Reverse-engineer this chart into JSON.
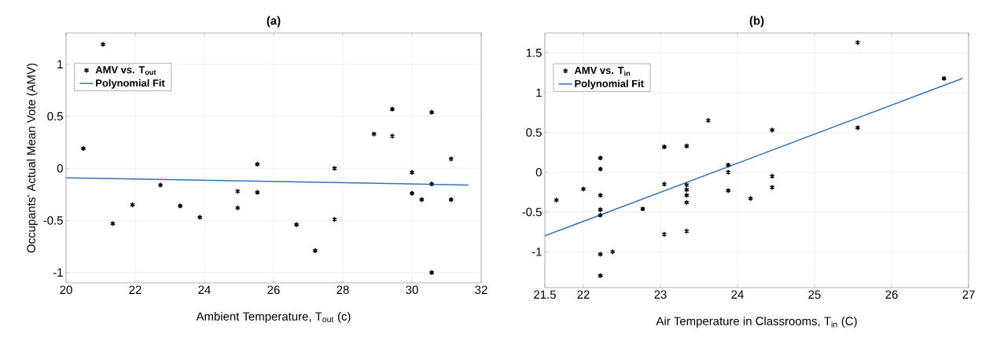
{
  "chart_data": [
    {
      "type": "scatter",
      "title": "(a)",
      "xlabel": "Ambient Temperature, T$_{out}$ (c)",
      "ylabel": "Occupants' Actual Mean Vote (AMV)",
      "xlim": [
        20,
        32
      ],
      "ylim": [
        -1.1,
        1.3
      ],
      "xticks": [
        20,
        22,
        24,
        26,
        28,
        30,
        32
      ],
      "yticks": [
        -1,
        -0.5,
        0,
        0.5,
        1
      ],
      "grid": true,
      "legend": "top left",
      "series": [
        {
          "name": "AMV vs. T$_{out}$",
          "marker": "cross",
          "color": "#000000",
          "x": [
            20.5,
            21.07,
            21.35,
            21.92,
            22.73,
            23.3,
            23.87,
            24.96,
            24.96,
            25.53,
            25.53,
            26.66,
            27.2,
            27.76,
            27.76,
            28.9,
            29.43,
            29.43,
            30.0,
            30.0,
            30.28,
            30.57,
            30.57,
            30.57,
            31.13,
            31.13
          ],
          "values": [
            0.19,
            1.19,
            -0.53,
            -0.35,
            -0.16,
            -0.36,
            -0.47,
            -0.22,
            -0.38,
            0.04,
            -0.23,
            -0.54,
            -0.79,
            0.0,
            -0.49,
            0.33,
            0.57,
            0.31,
            -0.04,
            -0.24,
            -0.3,
            0.54,
            -0.15,
            -1.0,
            0.09,
            -0.3
          ]
        },
        {
          "name": "Polynomial Fit",
          "type": "line",
          "marker": "none",
          "color": "#3572b8",
          "x": [
            20,
            31.64
          ],
          "values": [
            -0.09,
            -0.16
          ]
        }
      ]
    },
    {
      "type": "scatter",
      "title": "(b)",
      "xlabel": "Air Temperature in Classrooms, T$_{in}$  (C)",
      "xlim": [
        21.5,
        27
      ],
      "ylim": [
        -1.45,
        1.75
      ],
      "xticks": [
        21.5,
        22,
        23,
        24,
        25,
        26,
        27
      ],
      "yticks": [
        -1,
        -0.5,
        0,
        0.5,
        1,
        1.5
      ],
      "grid": true,
      "legend": "top left",
      "series": [
        {
          "name": "AMV vs. T$_{in}$",
          "marker": "cross",
          "color": "#000000",
          "x": [
            21.65,
            22.0,
            22.22,
            22.22,
            22.22,
            22.22,
            22.22,
            22.22,
            22.22,
            22.38,
            22.77,
            23.05,
            23.05,
            23.05,
            23.34,
            23.34,
            23.34,
            23.34,
            23.34,
            23.34,
            23.62,
            23.88,
            23.88,
            23.88,
            24.17,
            24.45,
            24.45,
            24.45,
            25.56,
            25.56,
            26.68
          ],
          "values": [
            -0.35,
            -0.21,
            0.18,
            0.04,
            -0.29,
            -0.47,
            -0.54,
            -1.03,
            -1.3,
            -1.0,
            -0.46,
            0.32,
            -0.15,
            -0.78,
            0.33,
            -0.16,
            -0.22,
            -0.29,
            -0.38,
            -0.74,
            0.65,
            0.09,
            0.0,
            -0.23,
            -0.33,
            0.53,
            -0.05,
            -0.19,
            1.63,
            0.56,
            1.18
          ]
        },
        {
          "name": "Polynomial Fit",
          "type": "line",
          "marker": "none",
          "color": "#3572b8",
          "x": [
            21.5,
            26.92
          ],
          "values": [
            -0.8,
            1.18
          ]
        }
      ]
    }
  ]
}
